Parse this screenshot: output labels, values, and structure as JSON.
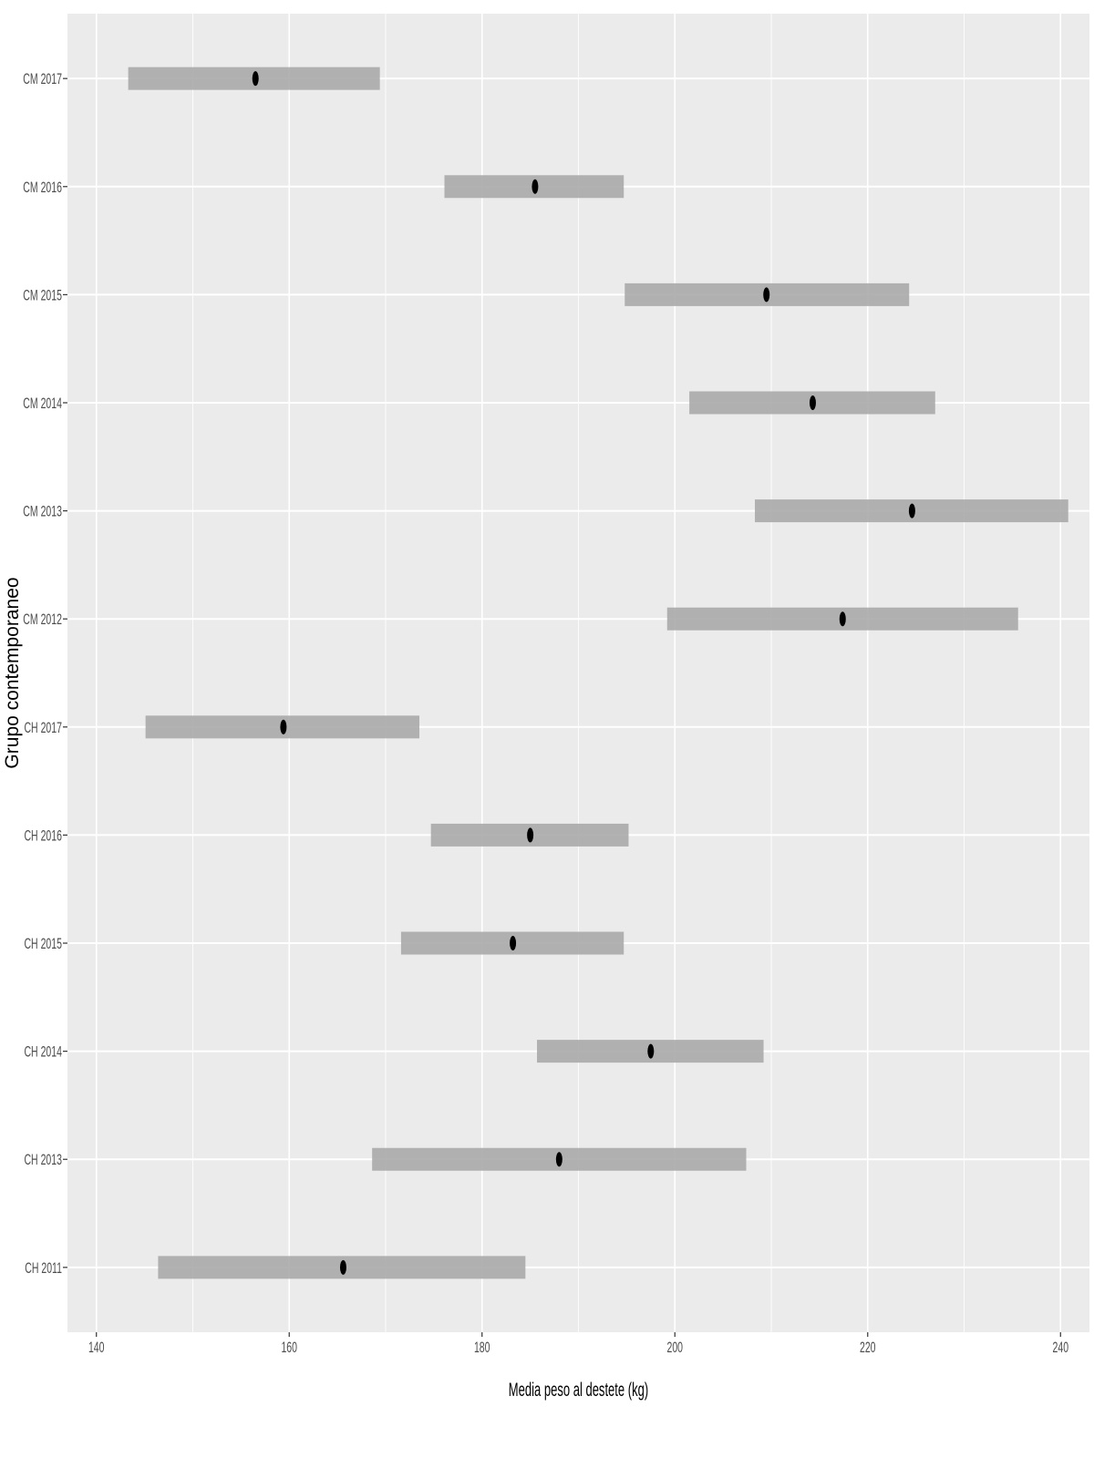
{
  "chart_data": {
    "type": "range-dot",
    "xlabel": "Media peso al destete (kg)",
    "ylabel": "Grupo contemporaneo",
    "xlim": [
      137,
      243
    ],
    "xticks": [
      140,
      160,
      180,
      200,
      220,
      240
    ],
    "x_minor": [
      150,
      170,
      190,
      210,
      230
    ],
    "grid": true,
    "categories": [
      "CM 2017",
      "CM 2016",
      "CM 2015",
      "CM 2014",
      "CM 2013",
      "CM 2012",
      "CH 2017",
      "CH 2016",
      "CH 2015",
      "CH 2014",
      "CH 2013",
      "CH 2011"
    ],
    "means": [
      156.5,
      185.5,
      209.5,
      214.3,
      224.6,
      217.4,
      159.4,
      185.0,
      183.2,
      197.5,
      188.0,
      165.6
    ],
    "lower": [
      143.3,
      176.1,
      194.8,
      201.5,
      208.3,
      199.2,
      145.1,
      174.7,
      171.6,
      185.7,
      168.6,
      146.4
    ],
    "upper": [
      169.4,
      194.7,
      224.3,
      227.0,
      240.8,
      235.6,
      173.5,
      195.2,
      194.7,
      209.2,
      207.4,
      184.5
    ]
  },
  "colors": {
    "background": "#ffffff",
    "panel": "#ebebeb",
    "gridline": "#ffffff",
    "range_bar": "#aaaaaa",
    "point": "#000000",
    "tick": "#333333"
  }
}
